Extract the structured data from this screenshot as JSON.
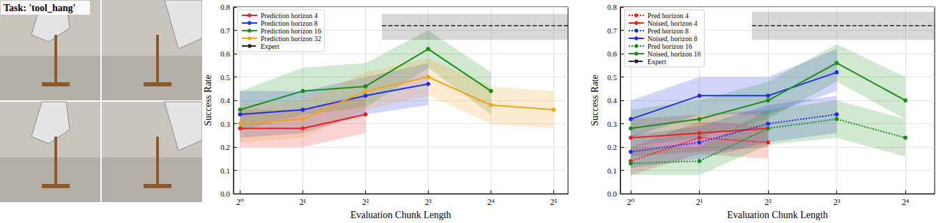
{
  "panel": {
    "label": "Task: 'tool_hang'"
  },
  "chart_data": [
    {
      "type": "line",
      "x_label": "Evaluation Chunk Length",
      "y_label": "Success Rate",
      "log": "x",
      "grid": true,
      "legend": "upper left",
      "xlim": [
        0.93,
        37.5
      ],
      "xticks": [
        {
          "value": 1,
          "label": "2⁰"
        },
        {
          "value": 2,
          "label": "2¹"
        },
        {
          "value": 4,
          "label": "2²"
        },
        {
          "value": 8,
          "label": "2³"
        },
        {
          "value": 16,
          "label": "2⁴"
        },
        {
          "value": 32,
          "label": "2⁵"
        }
      ],
      "ylim": [
        0,
        0.8
      ],
      "yticks": [
        {
          "value": 0,
          "label": "0.0"
        },
        0.1,
        0.2,
        0.3,
        0.4,
        0.5,
        0.6,
        0.7,
        0.8
      ],
      "series": [
        {
          "name": "Prediction horizon 4",
          "color": "#e8231f",
          "marker": "circle",
          "line_style": "solid",
          "x": [
            1,
            2,
            4
          ],
          "values": [
            0.28,
            0.28,
            0.34
          ],
          "low": [
            0.2,
            0.2,
            0.26
          ],
          "high": [
            0.36,
            0.36,
            0.42
          ]
        },
        {
          "name": "Prediction horizon 8",
          "color": "#1f2fe6",
          "marker": "circle",
          "line_style": "solid",
          "x": [
            1,
            2,
            4,
            8
          ],
          "values": [
            0.34,
            0.36,
            0.42,
            0.47
          ],
          "low": [
            0.24,
            0.26,
            0.34,
            0.38
          ],
          "high": [
            0.44,
            0.44,
            0.5,
            0.56
          ]
        },
        {
          "name": "Prediction horizon 16",
          "color": "#1a8c1a",
          "marker": "circle",
          "line_style": "solid",
          "x": [
            1,
            2,
            4,
            8,
            16
          ],
          "values": [
            0.36,
            0.44,
            0.46,
            0.62,
            0.44
          ],
          "low": [
            0.27,
            0.34,
            0.37,
            0.54,
            0.34
          ],
          "high": [
            0.44,
            0.54,
            0.56,
            0.7,
            0.52
          ]
        },
        {
          "name": "Prediction horizon 32",
          "color": "#f5a21a",
          "marker": "circle",
          "line_style": "solid",
          "x": [
            1,
            2,
            4,
            8,
            16,
            32
          ],
          "values": [
            0.3,
            0.32,
            0.44,
            0.5,
            0.38,
            0.36
          ],
          "low": [
            0.22,
            0.24,
            0.36,
            0.42,
            0.3,
            0.28
          ],
          "high": [
            0.38,
            0.4,
            0.52,
            0.58,
            0.46,
            0.44
          ]
        },
        {
          "name": "Expert",
          "color": "#222222",
          "marker": "none",
          "line_style": "dashed",
          "x": [
            4.8,
            37.5
          ],
          "values": [
            0.72,
            0.72
          ],
          "low": [
            0.66,
            0.66
          ],
          "high": [
            0.77,
            0.77
          ]
        }
      ]
    },
    {
      "type": "line",
      "x_label": "Evaluation Chunk Length",
      "y_label": "Success Rate",
      "log": "x",
      "grid": true,
      "legend": "upper left",
      "xlim": [
        0.9,
        21.5
      ],
      "xticks": [
        {
          "value": 1,
          "label": "2⁰"
        },
        {
          "value": 2,
          "label": "2¹"
        },
        {
          "value": 4,
          "label": "2²"
        },
        {
          "value": 8,
          "label": "2³"
        },
        {
          "value": 16,
          "label": "2⁴"
        }
      ],
      "ylim": [
        0,
        0.8
      ],
      "yticks": [
        {
          "value": 0,
          "label": "0.0"
        },
        0.1,
        0.2,
        0.3,
        0.4,
        0.5,
        0.6,
        0.7,
        0.8
      ],
      "series": [
        {
          "name": "Pred horizon 4",
          "color": "#e8231f",
          "marker": "circle",
          "line_style": "dotted",
          "x": [
            1,
            2,
            4
          ],
          "values": [
            0.14,
            0.24,
            0.22
          ],
          "low": [
            0.08,
            0.17,
            0.15
          ],
          "high": [
            0.2,
            0.31,
            0.29
          ]
        },
        {
          "name": "Noised, horizon 4",
          "color": "#e8231f",
          "marker": "circle",
          "line_style": "solid",
          "x": [
            1,
            2,
            4
          ],
          "values": [
            0.24,
            0.26,
            0.28
          ],
          "low": [
            0.16,
            0.18,
            0.2
          ],
          "high": [
            0.32,
            0.34,
            0.36
          ]
        },
        {
          "name": "Pred horizon 8",
          "color": "#1f2fe6",
          "marker": "circle",
          "line_style": "dotted",
          "x": [
            1,
            2,
            4,
            8
          ],
          "values": [
            0.18,
            0.22,
            0.3,
            0.34
          ],
          "low": [
            0.11,
            0.15,
            0.22,
            0.26
          ],
          "high": [
            0.25,
            0.29,
            0.38,
            0.42
          ]
        },
        {
          "name": "Noised, horizon 8",
          "color": "#1f2fe6",
          "marker": "circle",
          "line_style": "solid",
          "x": [
            1,
            2,
            4,
            8
          ],
          "values": [
            0.32,
            0.42,
            0.42,
            0.52
          ],
          "low": [
            0.24,
            0.34,
            0.34,
            0.44
          ],
          "high": [
            0.4,
            0.5,
            0.5,
            0.62
          ]
        },
        {
          "name": "Pred horizon 16",
          "color": "#1a8c1a",
          "marker": "circle",
          "line_style": "dotted",
          "x": [
            1,
            2,
            4,
            8,
            16
          ],
          "values": [
            0.13,
            0.14,
            0.28,
            0.32,
            0.24
          ],
          "low": [
            0.08,
            0.08,
            0.21,
            0.24,
            0.16
          ],
          "high": [
            0.2,
            0.2,
            0.36,
            0.4,
            0.32
          ]
        },
        {
          "name": "Noised, horizon 16",
          "color": "#1a8c1a",
          "marker": "circle",
          "line_style": "solid",
          "x": [
            1,
            2,
            4,
            8,
            16
          ],
          "values": [
            0.28,
            0.32,
            0.4,
            0.56,
            0.4
          ],
          "low": [
            0.2,
            0.24,
            0.32,
            0.48,
            0.32
          ],
          "high": [
            0.36,
            0.4,
            0.48,
            0.64,
            0.5
          ]
        },
        {
          "name": "Expert",
          "color": "#222222",
          "marker": "none",
          "line_style": "dashed",
          "x": [
            3.4,
            21.5
          ],
          "values": [
            0.72,
            0.72
          ],
          "low": [
            0.66,
            0.66
          ],
          "high": [
            0.78,
            0.78
          ]
        }
      ]
    }
  ]
}
